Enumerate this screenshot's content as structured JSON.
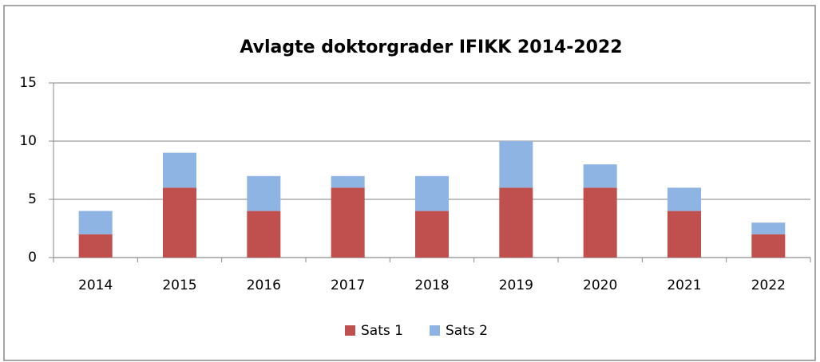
{
  "chart_data": {
    "type": "stacked_bar",
    "title": "Avlagte doktorgrader IFIKK 2014-2022",
    "categories": [
      "2014",
      "2015",
      "2016",
      "2017",
      "2018",
      "2019",
      "2020",
      "2021",
      "2022"
    ],
    "series": [
      {
        "name": "Sats 1",
        "color": "#c0504d",
        "values": [
          2,
          6,
          4,
          6,
          4,
          6,
          6,
          4,
          2
        ]
      },
      {
        "name": "Sats 2",
        "color": "#8db4e2",
        "values": [
          2,
          3,
          3,
          1,
          3,
          4,
          2,
          2,
          1
        ]
      }
    ],
    "ylim": [
      0,
      15
    ],
    "yticks": [
      0,
      5,
      10,
      15
    ],
    "grid": true,
    "legend": "bottom"
  }
}
